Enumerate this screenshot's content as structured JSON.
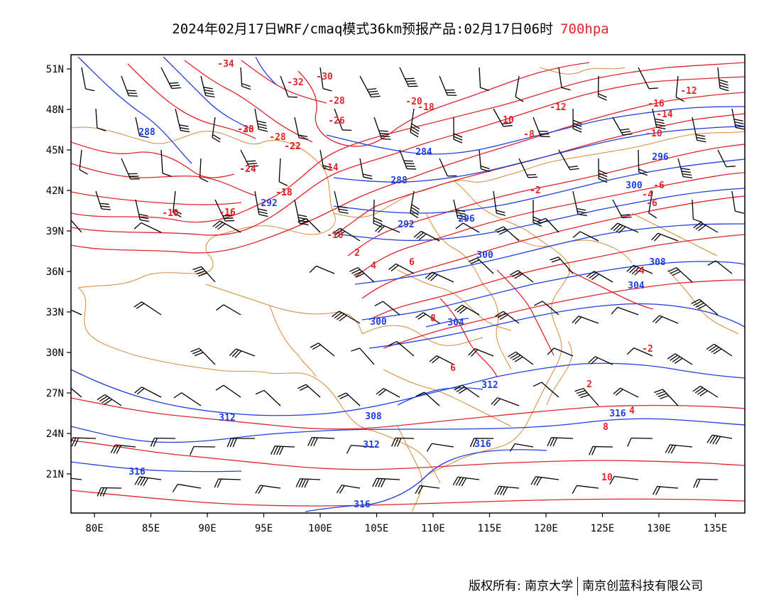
{
  "title": {
    "text": "2024年02月17日WRF/cmaq模式36km预报产品:02月17日06时",
    "level": "700hpa"
  },
  "colors": {
    "temperature": "#e0252b",
    "height": "#1f3fe0",
    "boundary": "#d98a3a",
    "wind": "#000000"
  },
  "axes": {
    "x_ticks": [
      "80E",
      "85E",
      "90E",
      "95E",
      "100E",
      "105E",
      "110E",
      "115E",
      "120E",
      "125E",
      "130E",
      "135E"
    ],
    "y_ticks": [
      "51N",
      "48N",
      "45N",
      "42N",
      "39N",
      "36N",
      "33N",
      "30N",
      "27N",
      "24N",
      "21N"
    ]
  },
  "temperature_labels": [
    "-34",
    "-32",
    "-30",
    "-28",
    "-26",
    "-24",
    "-22",
    "-18",
    "-16",
    "-14",
    "-12",
    "-10",
    "-8",
    "-6",
    "-4",
    "-2",
    "2",
    "4",
    "6",
    "8",
    "10",
    "-16",
    "-14",
    "-12",
    "-10",
    "-6",
    "-4",
    "-2",
    "2",
    "4",
    "6",
    "8",
    "10",
    "-18",
    "-28",
    "-28",
    "-30",
    "-24",
    "-22",
    "-20",
    "-18",
    "-16",
    "-10"
  ],
  "height_labels": [
    "288",
    "284",
    "288",
    "292",
    "292",
    "296",
    "296",
    "300",
    "300",
    "304",
    "300",
    "304",
    "308",
    "308",
    "312",
    "312",
    "312",
    "316",
    "316",
    "316",
    "316"
  ],
  "footer": {
    "copyright": "版权所有: 南京大学",
    "company": "南京创蓝科技有限公司"
  }
}
